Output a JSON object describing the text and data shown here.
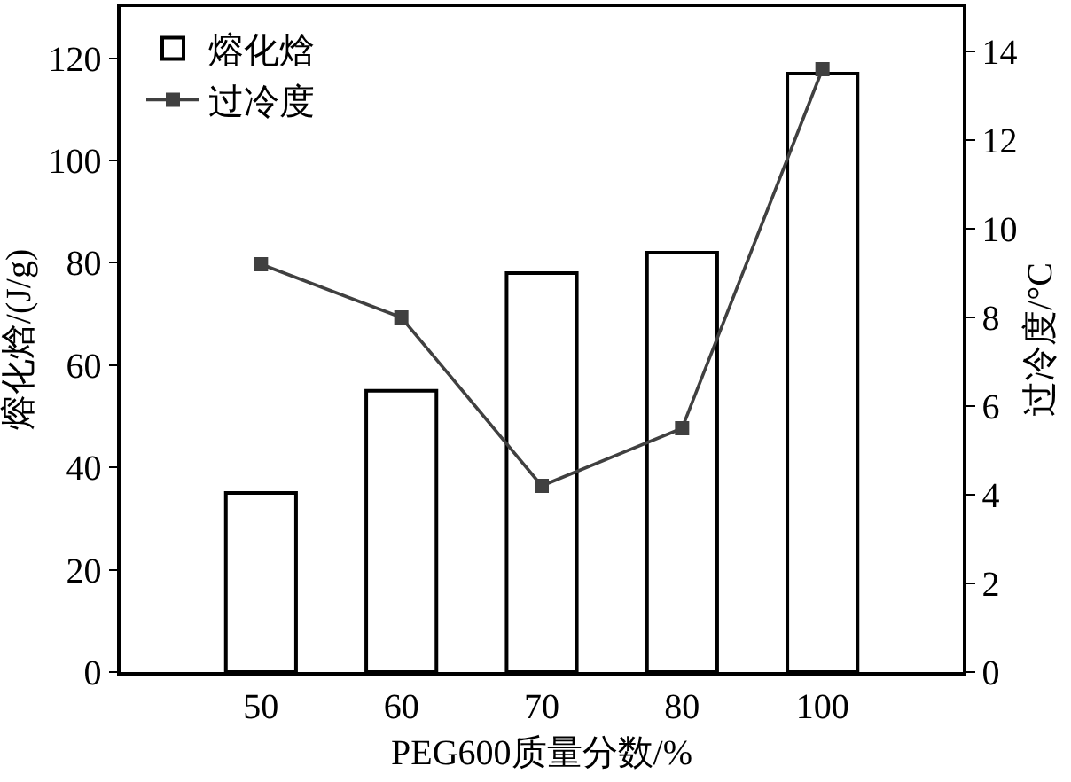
{
  "chart_data": {
    "type": "bar",
    "xlabel": "PEG600质量分数/%",
    "ylabel": "熔化焓/(J/g)",
    "y2label": "过冷度/°C",
    "categories": [
      "50",
      "60",
      "70",
      "80",
      "100"
    ],
    "series": [
      {
        "name": "熔化焓",
        "color": "#ffffff",
        "values": [
          35,
          55,
          78,
          82,
          117
        ]
      },
      {
        "name": "过冷度",
        "type": "line",
        "axis": "y2",
        "color": "#404040",
        "values": [
          9.2,
          8.0,
          4.2,
          5.5,
          13.6
        ]
      }
    ],
    "ylim": [
      0,
      130
    ],
    "yticks": [
      0,
      20,
      40,
      60,
      80,
      100,
      120
    ],
    "y2lim": [
      0,
      15
    ],
    "y2ticks": [
      0,
      2,
      4,
      6,
      8,
      10,
      12,
      14
    ],
    "marker": "square",
    "legend": "top left"
  }
}
